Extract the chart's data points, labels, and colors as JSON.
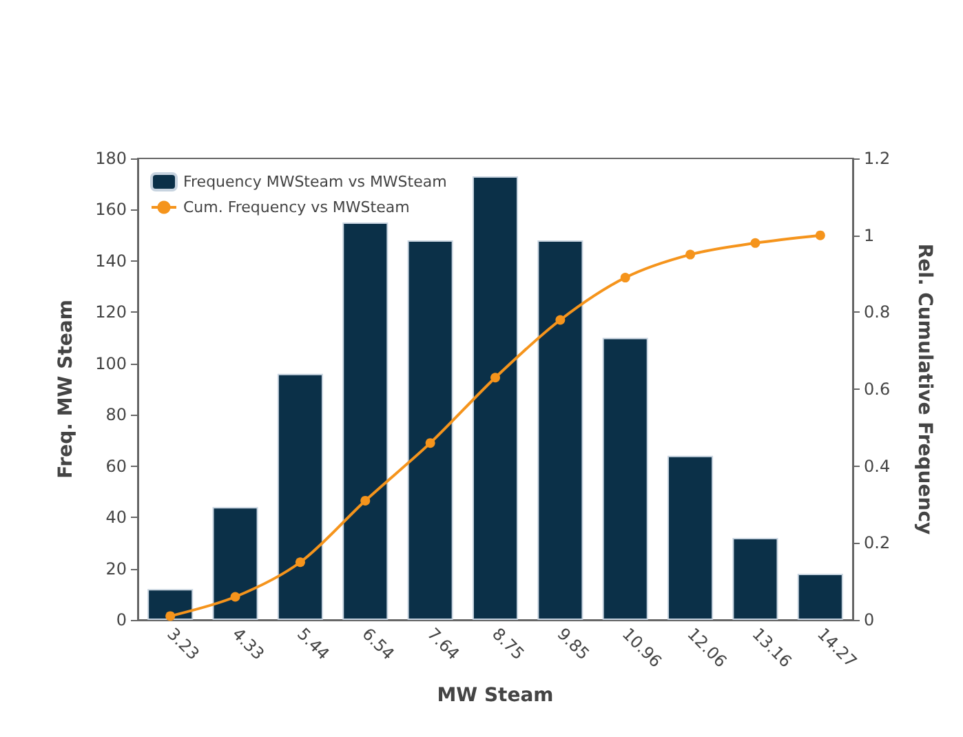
{
  "chart_data": {
    "type": "bar",
    "xlabel": "MW Steam",
    "ylabel": "Freq. MW Steam",
    "y2label": "Rel. Cumulative Frequency",
    "categories": [
      "3.23",
      "4.33",
      "5.44",
      "6.54",
      "7.64",
      "8.75",
      "9.85",
      "10.96",
      "12.06",
      "13.16",
      "14.27"
    ],
    "series": [
      {
        "name": "Frequency MWSteam vs MWSteam",
        "color": "#0b3048",
        "values": [
          12,
          44,
          96,
          155,
          148,
          173,
          148,
          110,
          64,
          32,
          18
        ]
      },
      {
        "name": "Cum. Frequency vs MWSteam",
        "type": "line",
        "axis": "y2",
        "color": "#f5941c",
        "values": [
          0.01,
          0.06,
          0.15,
          0.31,
          0.46,
          0.63,
          0.78,
          0.89,
          0.95,
          0.98,
          1
        ]
      }
    ],
    "ylim": [
      0,
      180
    ],
    "yticks": [
      0,
      20,
      40,
      60,
      80,
      100,
      120,
      140,
      160,
      180
    ],
    "y2lim": [
      0,
      1.2
    ],
    "y2ticks": [
      0,
      0.2,
      0.4,
      0.6,
      0.8,
      1,
      1.2
    ],
    "grid": false,
    "legend": "top left",
    "marker": "circle",
    "line_style": "solid"
  }
}
